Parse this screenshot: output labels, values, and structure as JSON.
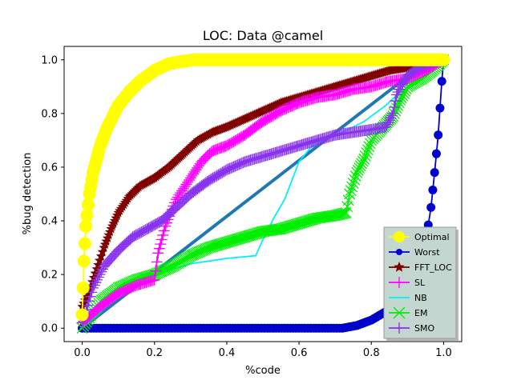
{
  "chart_data": {
    "type": "line",
    "title": "LOC: Data @camel",
    "xlabel": "%code",
    "ylabel": "%bug detection",
    "xlim": [
      -0.05,
      1.05
    ],
    "ylim": [
      -0.05,
      1.05
    ],
    "xticks": [
      0.0,
      0.2,
      0.4,
      0.6,
      0.8,
      1.0
    ],
    "yticks": [
      0.0,
      0.2,
      0.4,
      0.6,
      0.8,
      1.0
    ],
    "tick_labels": [
      "0.0",
      "0.2",
      "0.4",
      "0.6",
      "0.8",
      "1.0"
    ],
    "grid": false,
    "legend_position": "lower-right",
    "series": [
      {
        "name": "Optimal",
        "color": "#ffff00",
        "marker": "circle",
        "x": [
          0.0,
          0.005,
          0.01,
          0.02,
          0.03,
          0.05,
          0.07,
          0.1,
          0.13,
          0.16,
          0.2,
          0.24,
          0.28,
          0.31,
          0.5,
          0.7,
          1.0
        ],
        "y": [
          0.05,
          0.25,
          0.38,
          0.5,
          0.58,
          0.68,
          0.75,
          0.83,
          0.88,
          0.92,
          0.96,
          0.985,
          0.995,
          1.0,
          1.0,
          1.0,
          1.0
        ]
      },
      {
        "name": "Worst",
        "color": "#0000cc",
        "marker": "circle",
        "x": [
          0.0,
          0.2,
          0.4,
          0.6,
          0.72,
          0.76,
          0.8,
          0.85,
          0.9,
          0.93,
          0.95,
          0.965,
          0.975,
          0.985,
          0.99,
          0.995,
          1.0
        ],
        "y": [
          0.0,
          0.0,
          0.0,
          0.0,
          0.0,
          0.01,
          0.03,
          0.07,
          0.14,
          0.22,
          0.32,
          0.45,
          0.58,
          0.72,
          0.82,
          0.92,
          1.0
        ]
      },
      {
        "name": "FFT_LOC",
        "color": "#800000",
        "marker": "star",
        "x": [
          0.0,
          0.02,
          0.04,
          0.06,
          0.08,
          0.1,
          0.13,
          0.16,
          0.2,
          0.24,
          0.28,
          0.32,
          0.36,
          0.4,
          0.45,
          0.5,
          0.55,
          0.6,
          0.65,
          0.7,
          0.75,
          0.8,
          0.85,
          0.9,
          0.95,
          1.0
        ],
        "y": [
          0.08,
          0.14,
          0.22,
          0.3,
          0.37,
          0.43,
          0.49,
          0.53,
          0.56,
          0.6,
          0.65,
          0.7,
          0.73,
          0.75,
          0.78,
          0.81,
          0.84,
          0.86,
          0.88,
          0.9,
          0.92,
          0.94,
          0.96,
          0.97,
          0.99,
          1.0
        ]
      },
      {
        "name": "SL",
        "color": "#ff00ff",
        "marker": "plus",
        "x": [
          0.0,
          0.05,
          0.1,
          0.15,
          0.2,
          0.21,
          0.23,
          0.26,
          0.3,
          0.33,
          0.36,
          0.4,
          0.45,
          0.5,
          0.55,
          0.6,
          0.65,
          0.7,
          0.75,
          0.8,
          0.85,
          0.9,
          0.95,
          1.0
        ],
        "y": [
          0.02,
          0.08,
          0.13,
          0.16,
          0.18,
          0.28,
          0.38,
          0.48,
          0.56,
          0.62,
          0.66,
          0.68,
          0.72,
          0.77,
          0.81,
          0.84,
          0.86,
          0.87,
          0.89,
          0.9,
          0.92,
          0.93,
          0.96,
          1.0
        ]
      },
      {
        "name": "NB",
        "color": "#00eeff",
        "marker": "none",
        "x": [
          0.0,
          0.1,
          0.2,
          0.3,
          0.4,
          0.48,
          0.5,
          0.53,
          0.56,
          0.58,
          0.6,
          0.63,
          0.67,
          0.72,
          0.78,
          0.84,
          0.88,
          0.92,
          0.96,
          1.0
        ],
        "y": [
          0.0,
          0.12,
          0.2,
          0.24,
          0.26,
          0.27,
          0.33,
          0.41,
          0.48,
          0.55,
          0.62,
          0.67,
          0.71,
          0.73,
          0.77,
          0.83,
          0.88,
          0.91,
          0.96,
          1.0
        ]
      },
      {
        "name": "EM",
        "color": "#00ee00",
        "marker": "x",
        "x": [
          0.0,
          0.05,
          0.1,
          0.15,
          0.2,
          0.25,
          0.3,
          0.35,
          0.4,
          0.45,
          0.5,
          0.55,
          0.6,
          0.65,
          0.7,
          0.73,
          0.74,
          0.76,
          0.78,
          0.8,
          0.82,
          0.84,
          0.86,
          0.88,
          0.9,
          0.94,
          0.97,
          1.0
        ],
        "y": [
          0.0,
          0.1,
          0.15,
          0.18,
          0.2,
          0.23,
          0.27,
          0.3,
          0.32,
          0.34,
          0.36,
          0.37,
          0.39,
          0.41,
          0.42,
          0.43,
          0.5,
          0.58,
          0.63,
          0.7,
          0.73,
          0.76,
          0.79,
          0.85,
          0.9,
          0.93,
          0.96,
          1.0
        ]
      },
      {
        "name": "SMO",
        "color": "#8833ee",
        "marker": "plus",
        "x": [
          0.0,
          0.03,
          0.06,
          0.1,
          0.14,
          0.18,
          0.22,
          0.26,
          0.3,
          0.35,
          0.4,
          0.45,
          0.5,
          0.55,
          0.6,
          0.65,
          0.7,
          0.75,
          0.8,
          0.84,
          0.86,
          0.87,
          0.88,
          0.9,
          0.93,
          0.97,
          1.0
        ],
        "y": [
          0.02,
          0.15,
          0.23,
          0.29,
          0.34,
          0.37,
          0.4,
          0.45,
          0.5,
          0.55,
          0.59,
          0.62,
          0.64,
          0.66,
          0.68,
          0.7,
          0.72,
          0.73,
          0.74,
          0.75,
          0.8,
          0.87,
          0.9,
          0.94,
          0.97,
          0.99,
          1.0
        ]
      },
      {
        "name": "",
        "color": "#1f77b4",
        "marker": "none",
        "width_class": "thick",
        "legend": false,
        "x": [
          0.0,
          0.96
        ],
        "y": [
          0.0,
          1.0
        ]
      }
    ]
  }
}
